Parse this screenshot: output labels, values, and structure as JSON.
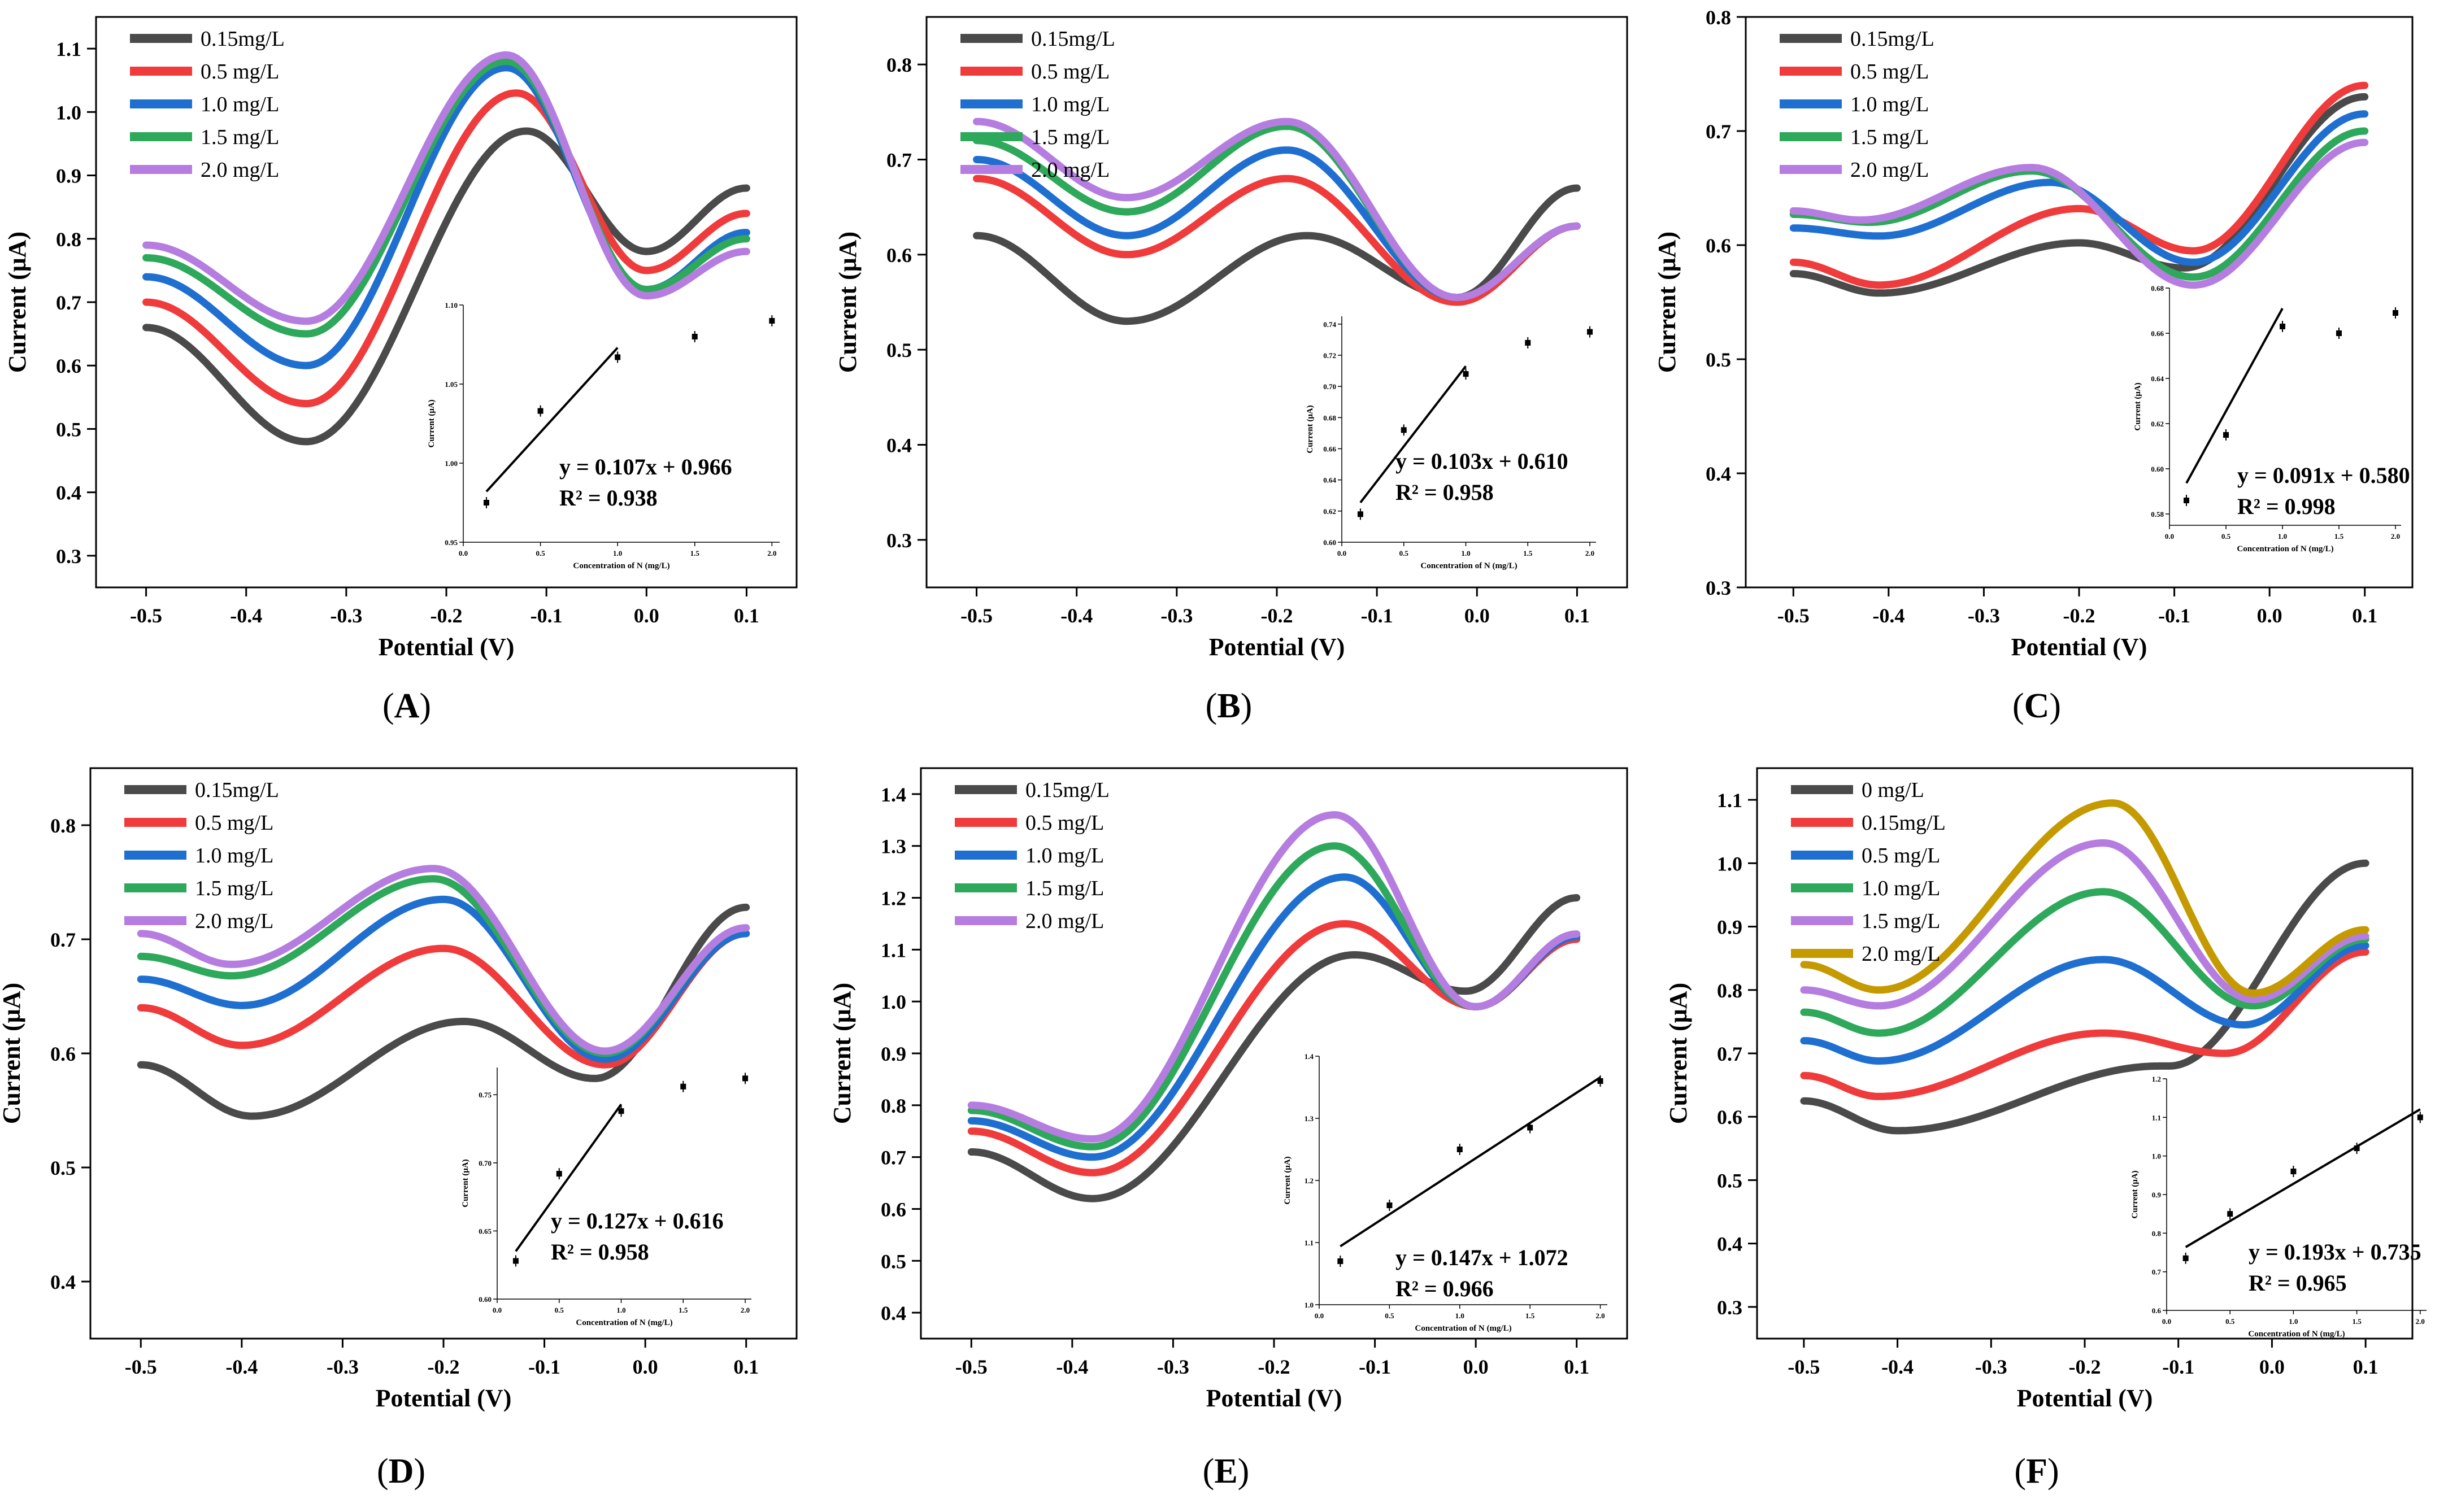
{
  "chart_data": [
    {
      "type": "line",
      "panel_label": "A",
      "xlabel": "Potential (V)",
      "ylabel": "Current (μA)",
      "xlim": [
        -0.55,
        0.15
      ],
      "ylim": [
        0.25,
        1.15
      ],
      "xticks": [
        "-0.5",
        "-0.4",
        "-0.3",
        "-0.2",
        "-0.1",
        "0.0",
        "0.1"
      ],
      "yticks": [
        "0.3",
        "0.4",
        "0.5",
        "0.6",
        "0.7",
        "0.8",
        "0.9",
        "1.0",
        "1.1"
      ],
      "legend": [
        "0.15mg/L",
        "0.5  mg/L",
        "1.0  mg/L",
        "1.5  mg/L",
        "2.0  mg/L"
      ],
      "series_params": [
        {
          "start": 0.66,
          "valley_x": -0.34,
          "valley_y": 0.48,
          "peak_x": -0.12,
          "peak_y": 0.97,
          "min2_x": 0.0,
          "min2_y": 0.78,
          "end": 0.88
        },
        {
          "start": 0.7,
          "valley_x": -0.34,
          "valley_y": 0.54,
          "peak_x": -0.13,
          "peak_y": 1.03,
          "min2_x": 0.0,
          "min2_y": 0.75,
          "end": 0.84
        },
        {
          "start": 0.74,
          "valley_x": -0.34,
          "valley_y": 0.6,
          "peak_x": -0.14,
          "peak_y": 1.07,
          "min2_x": 0.0,
          "min2_y": 0.72,
          "end": 0.81
        },
        {
          "start": 0.77,
          "valley_x": -0.34,
          "valley_y": 0.65,
          "peak_x": -0.14,
          "peak_y": 1.08,
          "min2_x": 0.0,
          "min2_y": 0.72,
          "end": 0.8
        },
        {
          "start": 0.79,
          "valley_x": -0.34,
          "valley_y": 0.67,
          "peak_x": -0.14,
          "peak_y": 1.09,
          "min2_x": 0.0,
          "min2_y": 0.71,
          "end": 0.78
        }
      ],
      "inset": {
        "xlabel": "Concentration of N (mg/L)",
        "ylabel": "Current (μA)",
        "xlim": [
          0,
          2.05
        ],
        "ylim": [
          0.95,
          1.1
        ],
        "xticks": [
          "0.0",
          "0.5",
          "1.0",
          "1.5",
          "2.0"
        ],
        "yticks": [
          "0.95",
          "1.00",
          "1.05",
          "1.10"
        ],
        "points": [
          [
            0.15,
            0.975
          ],
          [
            0.5,
            1.033
          ],
          [
            1.0,
            1.067
          ],
          [
            1.5,
            1.08
          ],
          [
            2.0,
            1.09
          ]
        ],
        "fit": {
          "slope": 0.107,
          "intercept": 0.966,
          "x_range": [
            0.15,
            1.0
          ]
        },
        "equation": "y   = 0.107x + 0.966",
        "r2": "R² = 0.938"
      }
    },
    {
      "type": "line",
      "panel_label": "B",
      "xlabel": "Potential (V)",
      "ylabel": "Current (μA)",
      "xlim": [
        -0.55,
        0.15
      ],
      "ylim": [
        0.25,
        0.85
      ],
      "xticks": [
        "-0.5",
        "-0.4",
        "-0.3",
        "-0.2",
        "-0.1",
        "0.0",
        "0.1"
      ],
      "yticks": [
        "0.3",
        "0.4",
        "0.5",
        "0.6",
        "0.7",
        "0.8"
      ],
      "legend": [
        "0.15mg/L",
        "0.5  mg/L",
        "1.0  mg/L",
        "1.5  mg/L",
        "2.0  mg/L"
      ],
      "series_params": [
        {
          "start": 0.62,
          "valley_x": -0.35,
          "valley_y": 0.53,
          "peak_x": -0.17,
          "peak_y": 0.62,
          "min2_x": -0.02,
          "min2_y": 0.555,
          "end": 0.67
        },
        {
          "start": 0.68,
          "valley_x": -0.35,
          "valley_y": 0.6,
          "peak_x": -0.19,
          "peak_y": 0.68,
          "min2_x": -0.02,
          "min2_y": 0.55,
          "end": 0.63
        },
        {
          "start": 0.7,
          "valley_x": -0.35,
          "valley_y": 0.62,
          "peak_x": -0.19,
          "peak_y": 0.71,
          "min2_x": -0.02,
          "min2_y": 0.555,
          "end": 0.63
        },
        {
          "start": 0.72,
          "valley_x": -0.35,
          "valley_y": 0.645,
          "peak_x": -0.19,
          "peak_y": 0.735,
          "min2_x": -0.02,
          "min2_y": 0.555,
          "end": 0.63
        },
        {
          "start": 0.74,
          "valley_x": -0.35,
          "valley_y": 0.66,
          "peak_x": -0.19,
          "peak_y": 0.74,
          "min2_x": -0.02,
          "min2_y": 0.555,
          "end": 0.63
        }
      ],
      "inset": {
        "xlabel": "Concentration of N (mg/L)",
        "ylabel": "Current (μA)",
        "xlim": [
          0,
          2.05
        ],
        "ylim": [
          0.6,
          0.745
        ],
        "xticks": [
          "0.0",
          "0.5",
          "1.0",
          "1.5",
          "2.0"
        ],
        "yticks": [
          "0.60",
          "0.62",
          "0.64",
          "0.66",
          "0.68",
          "0.70",
          "0.72",
          "0.74"
        ],
        "points": [
          [
            0.15,
            0.618
          ],
          [
            0.5,
            0.672
          ],
          [
            1.0,
            0.708
          ],
          [
            1.5,
            0.728
          ],
          [
            2.0,
            0.735
          ]
        ],
        "fit": {
          "slope": 0.103,
          "intercept": 0.61,
          "x_range": [
            0.15,
            1.0
          ]
        },
        "equation": "y   = 0.103x + 0.610",
        "r2": "R² = 0.958"
      }
    },
    {
      "type": "line",
      "panel_label": "C",
      "xlabel": "Potential (V)",
      "ylabel": "Current (μA)",
      "xlim": [
        -0.55,
        0.15
      ],
      "ylim": [
        0.3,
        0.8
      ],
      "xticks": [
        "-0.5",
        "-0.4",
        "-0.3",
        "-0.2",
        "-0.1",
        "0.0",
        "0.1"
      ],
      "yticks": [
        "0.3",
        "0.4",
        "0.5",
        "0.6",
        "0.7",
        "0.8"
      ],
      "legend": [
        "0.15mg/L",
        "0.5  mg/L",
        "1.0  mg/L",
        "1.5  mg/L",
        "2.0  mg/L"
      ],
      "series_params": [
        {
          "start": 0.575,
          "valley_x": -0.41,
          "valley_y": 0.558,
          "peak_x": -0.2,
          "peak_y": 0.602,
          "min2_x": -0.09,
          "min2_y": 0.58,
          "end": 0.73
        },
        {
          "start": 0.585,
          "valley_x": -0.41,
          "valley_y": 0.565,
          "peak_x": -0.2,
          "peak_y": 0.632,
          "min2_x": -0.08,
          "min2_y": 0.595,
          "end": 0.74
        },
        {
          "start": 0.615,
          "valley_x": -0.41,
          "valley_y": 0.608,
          "peak_x": -0.23,
          "peak_y": 0.655,
          "min2_x": -0.08,
          "min2_y": 0.585,
          "end": 0.715
        },
        {
          "start": 0.627,
          "valley_x": -0.42,
          "valley_y": 0.62,
          "peak_x": -0.25,
          "peak_y": 0.665,
          "min2_x": -0.08,
          "min2_y": 0.572,
          "end": 0.7
        },
        {
          "start": 0.63,
          "valley_x": -0.43,
          "valley_y": 0.622,
          "peak_x": -0.25,
          "peak_y": 0.668,
          "min2_x": -0.08,
          "min2_y": 0.565,
          "end": 0.69
        }
      ],
      "inset": {
        "xlabel": "Concentration of N (mg/L)",
        "ylabel": "Current (μA)",
        "xlim": [
          0,
          2.05
        ],
        "ylim": [
          0.575,
          0.68
        ],
        "xticks": [
          "0.0",
          "0.5",
          "1.0",
          "1.5",
          "2.0"
        ],
        "yticks": [
          "0.58",
          "0.60",
          "0.62",
          "0.64",
          "0.66",
          "0.68"
        ],
        "points": [
          [
            0.15,
            0.586
          ],
          [
            0.5,
            0.615
          ],
          [
            1.0,
            0.663
          ],
          [
            1.5,
            0.66
          ],
          [
            2.0,
            0.669
          ]
        ],
        "fit": {
          "slope": 0.091,
          "intercept": 0.58,
          "x_range": [
            0.15,
            1.0
          ]
        },
        "equation": "y   = 0.091x + 0.580",
        "r2": "R² = 0.998"
      }
    },
    {
      "type": "line",
      "panel_label": "D",
      "xlabel": "Potential (V)",
      "ylabel": "Current (μA)",
      "xlim": [
        -0.55,
        0.15
      ],
      "ylim": [
        0.35,
        0.85
      ],
      "xticks": [
        "-0.5",
        "-0.4",
        "-0.3",
        "-0.2",
        "-0.1",
        "0.0",
        "0.1"
      ],
      "yticks": [
        "0.4",
        "0.5",
        "0.6",
        "0.7",
        "0.8"
      ],
      "legend": [
        "0.15mg/L",
        "0.5  mg/L",
        "1.0  mg/L",
        "1.5  mg/L",
        "2.0  mg/L"
      ],
      "series_params": [
        {
          "start": 0.59,
          "valley_x": -0.39,
          "valley_y": 0.545,
          "peak_x": -0.18,
          "peak_y": 0.628,
          "min2_x": -0.05,
          "min2_y": 0.578,
          "end": 0.728
        },
        {
          "start": 0.64,
          "valley_x": -0.4,
          "valley_y": 0.607,
          "peak_x": -0.2,
          "peak_y": 0.692,
          "min2_x": -0.04,
          "min2_y": 0.59,
          "end": 0.705
        },
        {
          "start": 0.665,
          "valley_x": -0.4,
          "valley_y": 0.642,
          "peak_x": -0.2,
          "peak_y": 0.735,
          "min2_x": -0.04,
          "min2_y": 0.595,
          "end": 0.705
        },
        {
          "start": 0.685,
          "valley_x": -0.41,
          "valley_y": 0.668,
          "peak_x": -0.21,
          "peak_y": 0.753,
          "min2_x": -0.04,
          "min2_y": 0.6,
          "end": 0.71
        },
        {
          "start": 0.705,
          "valley_x": -0.41,
          "valley_y": 0.678,
          "peak_x": -0.21,
          "peak_y": 0.762,
          "min2_x": -0.04,
          "min2_y": 0.602,
          "end": 0.71
        }
      ],
      "inset": {
        "xlabel": "Concentration of N (mg/L)",
        "ylabel": "Current (μA)",
        "xlim": [
          0,
          2.05
        ],
        "ylim": [
          0.6,
          0.77
        ],
        "xticks": [
          "0.0",
          "0.5",
          "1.0",
          "1.5",
          "2.0"
        ],
        "yticks": [
          "0.60",
          "0.65",
          "0.70",
          "0.75"
        ],
        "points": [
          [
            0.15,
            0.628
          ],
          [
            0.5,
            0.692
          ],
          [
            1.0,
            0.738
          ],
          [
            1.5,
            0.756
          ],
          [
            2.0,
            0.762
          ]
        ],
        "fit": {
          "slope": 0.127,
          "intercept": 0.616,
          "x_range": [
            0.15,
            1.0
          ]
        },
        "equation": "y   = 0.127x + 0.616",
        "r2": "R² = 0.958"
      }
    },
    {
      "type": "line",
      "panel_label": "E",
      "xlabel": "Potential (V)",
      "ylabel": "Current (μA)",
      "xlim": [
        -0.55,
        0.15
      ],
      "ylim": [
        0.35,
        1.45
      ],
      "xticks": [
        "-0.5",
        "-0.4",
        "-0.3",
        "-0.2",
        "-0.1",
        "0.0",
        "0.1"
      ],
      "yticks": [
        "0.4",
        "0.5",
        "0.6",
        "0.7",
        "0.8",
        "0.9",
        "1.0",
        "1.1",
        "1.2",
        "1.3",
        "1.4"
      ],
      "legend": [
        "0.15mg/L",
        "0.5  mg/L",
        "1.0  mg/L",
        "1.5  mg/L",
        "2.0  mg/L"
      ],
      "series_params": [
        {
          "start": 0.71,
          "valley_x": -0.38,
          "valley_y": 0.62,
          "peak_x": -0.12,
          "peak_y": 1.09,
          "min2_x": -0.01,
          "min2_y": 1.02,
          "end": 1.2
        },
        {
          "start": 0.75,
          "valley_x": -0.38,
          "valley_y": 0.67,
          "peak_x": -0.13,
          "peak_y": 1.15,
          "min2_x": 0.0,
          "min2_y": 0.99,
          "end": 1.12
        },
        {
          "start": 0.77,
          "valley_x": -0.38,
          "valley_y": 0.7,
          "peak_x": -0.13,
          "peak_y": 1.24,
          "min2_x": 0.0,
          "min2_y": 0.99,
          "end": 1.125
        },
        {
          "start": 0.79,
          "valley_x": -0.38,
          "valley_y": 0.72,
          "peak_x": -0.14,
          "peak_y": 1.3,
          "min2_x": 0.0,
          "min2_y": 0.99,
          "end": 1.13
        },
        {
          "start": 0.8,
          "valley_x": -0.38,
          "valley_y": 0.735,
          "peak_x": -0.14,
          "peak_y": 1.36,
          "min2_x": 0.0,
          "min2_y": 0.99,
          "end": 1.13
        }
      ],
      "inset": {
        "xlabel": "Concentration of N (mg/L)",
        "ylabel": "Current (μA)",
        "xlim": [
          0,
          2.05
        ],
        "ylim": [
          1.0,
          1.4
        ],
        "xticks": [
          "0.0",
          "0.5",
          "1.0",
          "1.5",
          "2.0"
        ],
        "yticks": [
          "1.0",
          "1.1",
          "1.2",
          "1.3",
          "1.4"
        ],
        "points": [
          [
            0.15,
            1.07
          ],
          [
            0.5,
            1.16
          ],
          [
            1.0,
            1.25
          ],
          [
            1.5,
            1.285
          ],
          [
            2.0,
            1.36
          ]
        ],
        "fit": {
          "slope": 0.147,
          "intercept": 1.072,
          "x_range": [
            0.15,
            2.0
          ]
        },
        "equation": "y   = 0.147x + 1.072",
        "r2": "R² = 0.966"
      }
    },
    {
      "type": "line",
      "panel_label": "F",
      "xlabel": "Potential (V)",
      "ylabel": "Current (μA)",
      "xlim": [
        -0.55,
        0.15
      ],
      "ylim": [
        0.25,
        1.15
      ],
      "xticks": [
        "-0.5",
        "-0.4",
        "-0.3",
        "-0.2",
        "-0.1",
        "0.0",
        "0.1"
      ],
      "yticks": [
        "0.3",
        "0.4",
        "0.5",
        "0.6",
        "0.7",
        "0.8",
        "0.9",
        "1.0",
        "1.1"
      ],
      "legend": [
        "0     mg/L",
        "0.15mg/L",
        "0.5  mg/L",
        "1.0  mg/L",
        "1.5  mg/L",
        "2.0  mg/L"
      ],
      "series_params": [
        {
          "start": 0.625,
          "valley_x": -0.4,
          "valley_y": 0.578,
          "peak_x": -0.12,
          "peak_y": 0.68,
          "min2_x": -0.11,
          "min2_y": 0.68,
          "end": 1.0
        },
        {
          "start": 0.665,
          "valley_x": -0.42,
          "valley_y": 0.632,
          "peak_x": -0.18,
          "peak_y": 0.732,
          "min2_x": -0.05,
          "min2_y": 0.7,
          "end": 0.86
        },
        {
          "start": 0.72,
          "valley_x": -0.42,
          "valley_y": 0.688,
          "peak_x": -0.18,
          "peak_y": 0.848,
          "min2_x": -0.03,
          "min2_y": 0.745,
          "end": 0.87
        },
        {
          "start": 0.765,
          "valley_x": -0.42,
          "valley_y": 0.732,
          "peak_x": -0.18,
          "peak_y": 0.955,
          "min2_x": -0.02,
          "min2_y": 0.775,
          "end": 0.88
        },
        {
          "start": 0.8,
          "valley_x": -0.42,
          "valley_y": 0.775,
          "peak_x": -0.18,
          "peak_y": 1.032,
          "min2_x": -0.02,
          "min2_y": 0.785,
          "end": 0.885
        },
        {
          "start": 0.84,
          "valley_x": -0.42,
          "valley_y": 0.8,
          "peak_x": -0.17,
          "peak_y": 1.095,
          "min2_x": -0.02,
          "min2_y": 0.795,
          "end": 0.895
        }
      ],
      "inset": {
        "xlabel": "Concentration of N (mg/L)",
        "ylabel": "Current (μA)",
        "xlim": [
          0,
          2.05
        ],
        "ylim": [
          0.6,
          1.2
        ],
        "xticks": [
          "0.0",
          "0.5",
          "1.0",
          "1.5",
          "2.0"
        ],
        "yticks": [
          "0.6",
          "0.7",
          "0.8",
          "0.9",
          "1.0",
          "1.1",
          "1.2"
        ],
        "points": [
          [
            0.15,
            0.735
          ],
          [
            0.5,
            0.85
          ],
          [
            1.0,
            0.96
          ],
          [
            1.5,
            1.02
          ],
          [
            2.0,
            1.1
          ]
        ],
        "fit": {
          "slope": 0.193,
          "intercept": 0.735,
          "x_range": [
            0.15,
            2.0
          ]
        },
        "equation": "y   = 0.193x + 0.735",
        "r2": "R² = 0.965"
      }
    }
  ],
  "colors": {
    "five_series": [
      "#4a4a4a",
      "#ef3b3b",
      "#1f6fd1",
      "#2ea85a",
      "#b67de0"
    ],
    "six_series": [
      "#4a4a4a",
      "#ef3b3b",
      "#1f6fd1",
      "#2ea85a",
      "#b67de0",
      "#c49a00"
    ]
  }
}
